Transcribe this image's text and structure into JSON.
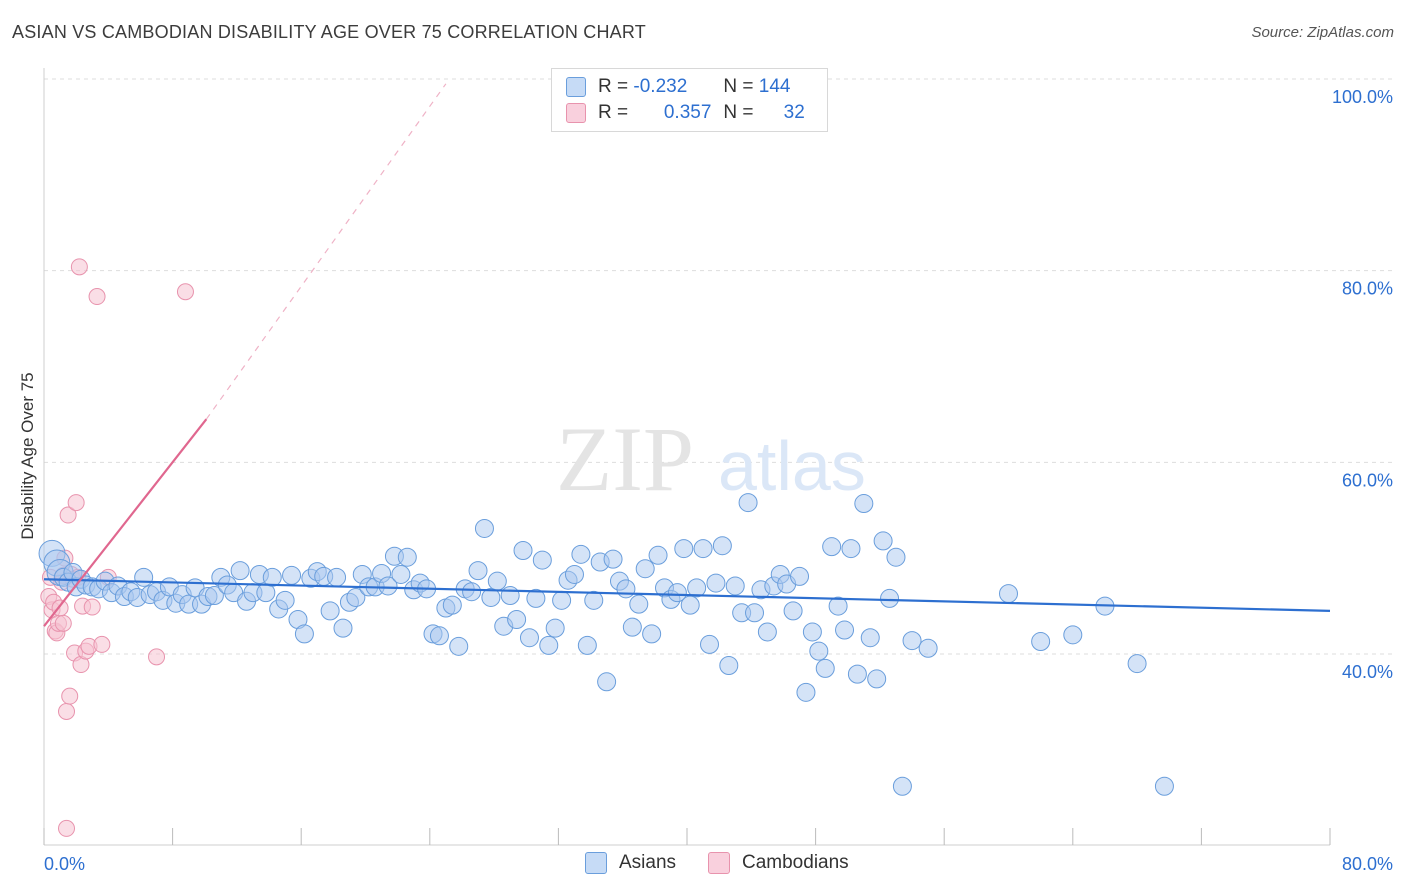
{
  "header": {
    "title": "ASIAN VS CAMBODIAN DISABILITY AGE OVER 75 CORRELATION CHART",
    "source": "Source: ZipAtlas.com"
  },
  "watermark": {
    "zip": "ZIP",
    "atlas": "atlas"
  },
  "legend": {
    "rows": [
      {
        "r_label": "R =",
        "r_value": "-0.232",
        "n_label": "N =",
        "n_value": "144",
        "color": "#a9c8f0"
      },
      {
        "r_label": "R =",
        "r_value": "0.357",
        "n_label": "N =",
        "n_value": "32",
        "color": "#f5b8cb"
      }
    ]
  },
  "colors": {
    "asians_fill": "#a9c8f0",
    "asians_stroke": "#6a9edc",
    "asians_line": "#2d6fd0",
    "cambodians_fill": "#f5c2d2",
    "cambodians_stroke": "#e893ad",
    "cambodians_line": "#e0678f",
    "tick_text": "#2d6fd0",
    "grid": "#dddddd"
  },
  "chart_data": {
    "type": "scatter",
    "title": "ASIAN VS CAMBODIAN DISABILITY AGE OVER 75 CORRELATION CHART",
    "xlabel": "",
    "ylabel": "Disability Age Over 75",
    "xlim": [
      0,
      80
    ],
    "ylim": [
      18,
      102
    ],
    "x_tick_labels": [
      "0.0%",
      "80.0%"
    ],
    "y_ticks": [
      40,
      60,
      80,
      100
    ],
    "y_tick_labels": [
      "40.0%",
      "60.0%",
      "80.0%",
      "100.0%"
    ],
    "grid": true,
    "legend_position": "bottom-center",
    "series": [
      {
        "name": "Asians",
        "r": -0.232,
        "n": 144,
        "trend": {
          "x0": 0,
          "y0": 47.8,
          "x1": 80,
          "y1": 44.5
        },
        "points": [
          [
            0.5,
            50.5
          ],
          [
            0.8,
            49.5
          ],
          [
            1.0,
            48.5
          ],
          [
            1.2,
            48.0
          ],
          [
            1.5,
            47.5
          ],
          [
            1.8,
            48.5
          ],
          [
            2.0,
            47.0
          ],
          [
            2.3,
            47.8
          ],
          [
            2.6,
            47.2
          ],
          [
            3.0,
            47.0
          ],
          [
            3.4,
            46.8
          ],
          [
            3.8,
            47.6
          ],
          [
            4.2,
            46.4
          ],
          [
            4.6,
            47.1
          ],
          [
            5.0,
            46.0
          ],
          [
            5.4,
            46.5
          ],
          [
            5.8,
            45.9
          ],
          [
            6.2,
            48.0
          ],
          [
            6.6,
            46.2
          ],
          [
            7.0,
            46.5
          ],
          [
            7.4,
            45.6
          ],
          [
            7.8,
            47.0
          ],
          [
            8.2,
            45.3
          ],
          [
            8.6,
            46.2
          ],
          [
            9.0,
            45.2
          ],
          [
            9.4,
            46.9
          ],
          [
            9.8,
            45.2
          ],
          [
            10.2,
            46.0
          ],
          [
            10.6,
            46.1
          ],
          [
            11.0,
            48.0
          ],
          [
            11.4,
            47.2
          ],
          [
            11.8,
            46.4
          ],
          [
            12.2,
            48.7
          ],
          [
            12.6,
            45.5
          ],
          [
            13.0,
            46.4
          ],
          [
            13.4,
            48.3
          ],
          [
            13.8,
            46.4
          ],
          [
            14.2,
            48.0
          ],
          [
            14.6,
            44.7
          ],
          [
            15.0,
            45.6
          ],
          [
            15.4,
            48.2
          ],
          [
            15.8,
            43.6
          ],
          [
            16.2,
            42.1
          ],
          [
            16.6,
            47.9
          ],
          [
            17.0,
            48.6
          ],
          [
            17.4,
            48.1
          ],
          [
            17.8,
            44.5
          ],
          [
            18.2,
            48.0
          ],
          [
            18.6,
            42.7
          ],
          [
            19.0,
            45.4
          ],
          [
            19.4,
            45.9
          ],
          [
            19.8,
            48.3
          ],
          [
            20.2,
            47.0
          ],
          [
            20.6,
            47.0
          ],
          [
            21.0,
            48.4
          ],
          [
            21.4,
            47.1
          ],
          [
            21.8,
            50.2
          ],
          [
            22.2,
            48.3
          ],
          [
            22.6,
            50.1
          ],
          [
            23.0,
            46.7
          ],
          [
            23.4,
            47.4
          ],
          [
            23.8,
            46.8
          ],
          [
            24.2,
            42.1
          ],
          [
            24.6,
            41.9
          ],
          [
            25.0,
            44.8
          ],
          [
            25.4,
            45.1
          ],
          [
            25.8,
            40.8
          ],
          [
            26.2,
            46.8
          ],
          [
            26.6,
            46.5
          ],
          [
            27.0,
            48.7
          ],
          [
            27.4,
            53.1
          ],
          [
            27.8,
            45.9
          ],
          [
            28.2,
            47.6
          ],
          [
            28.6,
            42.9
          ],
          [
            29.0,
            46.1
          ],
          [
            29.4,
            43.6
          ],
          [
            29.8,
            50.8
          ],
          [
            30.2,
            41.7
          ],
          [
            30.6,
            45.8
          ],
          [
            31.0,
            49.8
          ],
          [
            31.4,
            40.9
          ],
          [
            31.8,
            42.7
          ],
          [
            32.2,
            45.6
          ],
          [
            32.6,
            47.7
          ],
          [
            33.0,
            48.3
          ],
          [
            33.4,
            50.4
          ],
          [
            33.8,
            40.9
          ],
          [
            34.2,
            45.6
          ],
          [
            34.6,
            49.6
          ],
          [
            35.0,
            37.1
          ],
          [
            35.4,
            49.9
          ],
          [
            35.8,
            47.6
          ],
          [
            36.2,
            46.8
          ],
          [
            36.6,
            42.8
          ],
          [
            37.0,
            45.2
          ],
          [
            37.4,
            48.9
          ],
          [
            37.8,
            42.1
          ],
          [
            38.2,
            50.3
          ],
          [
            38.6,
            46.9
          ],
          [
            39.0,
            45.7
          ],
          [
            39.4,
            46.4
          ],
          [
            39.8,
            51.0
          ],
          [
            40.2,
            45.1
          ],
          [
            40.6,
            46.9
          ],
          [
            41.0,
            51.0
          ],
          [
            41.4,
            41.0
          ],
          [
            41.8,
            47.4
          ],
          [
            42.2,
            51.3
          ],
          [
            42.6,
            38.8
          ],
          [
            43.0,
            47.1
          ],
          [
            43.4,
            44.3
          ],
          [
            43.8,
            55.8
          ],
          [
            44.2,
            44.3
          ],
          [
            44.6,
            46.7
          ],
          [
            45.0,
            42.3
          ],
          [
            45.4,
            47.1
          ],
          [
            45.8,
            48.3
          ],
          [
            46.2,
            47.3
          ],
          [
            46.6,
            44.5
          ],
          [
            47.0,
            48.1
          ],
          [
            47.4,
            36.0
          ],
          [
            47.8,
            42.3
          ],
          [
            48.2,
            40.3
          ],
          [
            48.6,
            38.5
          ],
          [
            49.0,
            51.2
          ],
          [
            49.4,
            45.0
          ],
          [
            49.8,
            42.5
          ],
          [
            50.2,
            51.0
          ],
          [
            50.6,
            37.9
          ],
          [
            51.0,
            55.7
          ],
          [
            51.4,
            41.7
          ],
          [
            51.8,
            37.4
          ],
          [
            52.2,
            51.8
          ],
          [
            52.6,
            45.8
          ],
          [
            53.0,
            50.1
          ],
          [
            53.4,
            26.2
          ],
          [
            54.0,
            41.4
          ],
          [
            55.0,
            40.6
          ],
          [
            60.0,
            46.3
          ],
          [
            62.0,
            41.3
          ],
          [
            64.0,
            42.0
          ],
          [
            66.0,
            45.0
          ],
          [
            68.0,
            39.0
          ],
          [
            69.7,
            26.2
          ]
        ]
      },
      {
        "name": "Cambodians",
        "r": 0.357,
        "n": 32,
        "trend": {
          "x0": 0,
          "y0": 42.9,
          "x1": 10.1,
          "y1": 64.5,
          "dash_x1": 25.0,
          "dash_y1": 99.5
        },
        "points": [
          [
            0.3,
            46.0
          ],
          [
            0.4,
            48.0
          ],
          [
            0.5,
            44.6
          ],
          [
            0.6,
            45.4
          ],
          [
            0.7,
            42.4
          ],
          [
            0.8,
            42.2
          ],
          [
            0.9,
            43.2
          ],
          [
            1.0,
            44.8
          ],
          [
            1.1,
            47.5
          ],
          [
            1.2,
            48.2
          ],
          [
            1.3,
            50.0
          ],
          [
            1.4,
            34.0
          ],
          [
            1.5,
            54.5
          ],
          [
            1.6,
            35.6
          ],
          [
            1.7,
            48.3
          ],
          [
            1.8,
            47.8
          ],
          [
            1.9,
            40.1
          ],
          [
            2.0,
            55.8
          ],
          [
            2.1,
            48.0
          ],
          [
            2.2,
            80.4
          ],
          [
            2.3,
            38.9
          ],
          [
            2.4,
            45.0
          ],
          [
            2.6,
            40.3
          ],
          [
            2.8,
            40.8
          ],
          [
            3.0,
            44.9
          ],
          [
            3.3,
            77.3
          ],
          [
            3.6,
            41.0
          ],
          [
            4.0,
            48.0
          ],
          [
            7.0,
            39.7
          ],
          [
            8.8,
            77.8
          ],
          [
            1.4,
            21.8
          ],
          [
            1.2,
            43.2
          ]
        ]
      }
    ]
  }
}
